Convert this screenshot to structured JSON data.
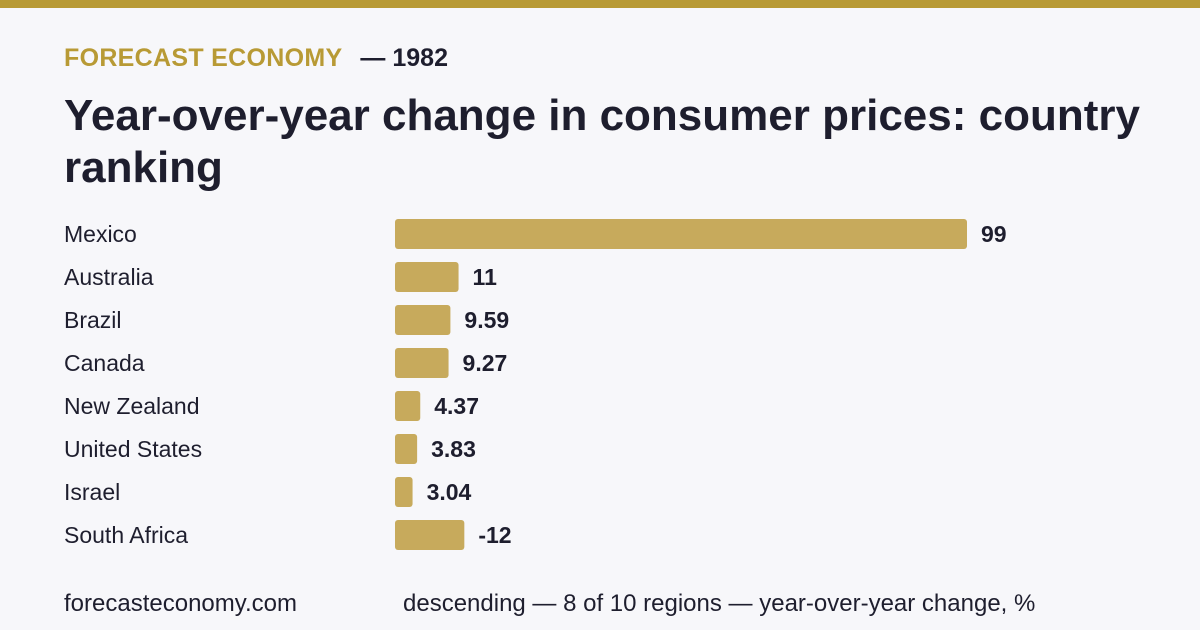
{
  "header": {
    "brand": "FORECAST ECONOMY",
    "year": "— 1982",
    "title": "Year-over-year change in consumer prices: country ranking"
  },
  "footer": {
    "site": "forecasteconomy.com",
    "note": "descending — 8 of 10 regions — year-over-year change, %"
  },
  "colors": {
    "accent": "#b89a35",
    "bar": "#c7aa5c",
    "text": "#1e1e2e",
    "background": "#f7f7fa"
  },
  "chart_data": {
    "type": "bar",
    "orientation": "horizontal",
    "categories": [
      "Mexico",
      "Australia",
      "Brazil",
      "Canada",
      "New Zealand",
      "United States",
      "Israel",
      "South Africa"
    ],
    "values": [
      99,
      11,
      9.59,
      9.27,
      4.37,
      3.83,
      3.04,
      -12
    ],
    "value_labels": [
      "99",
      "11",
      "9.59",
      "9.27",
      "4.37",
      "3.83",
      "3.04",
      "-12"
    ],
    "bar_length_basis": "absolute value",
    "grid": false,
    "legend": "none"
  }
}
